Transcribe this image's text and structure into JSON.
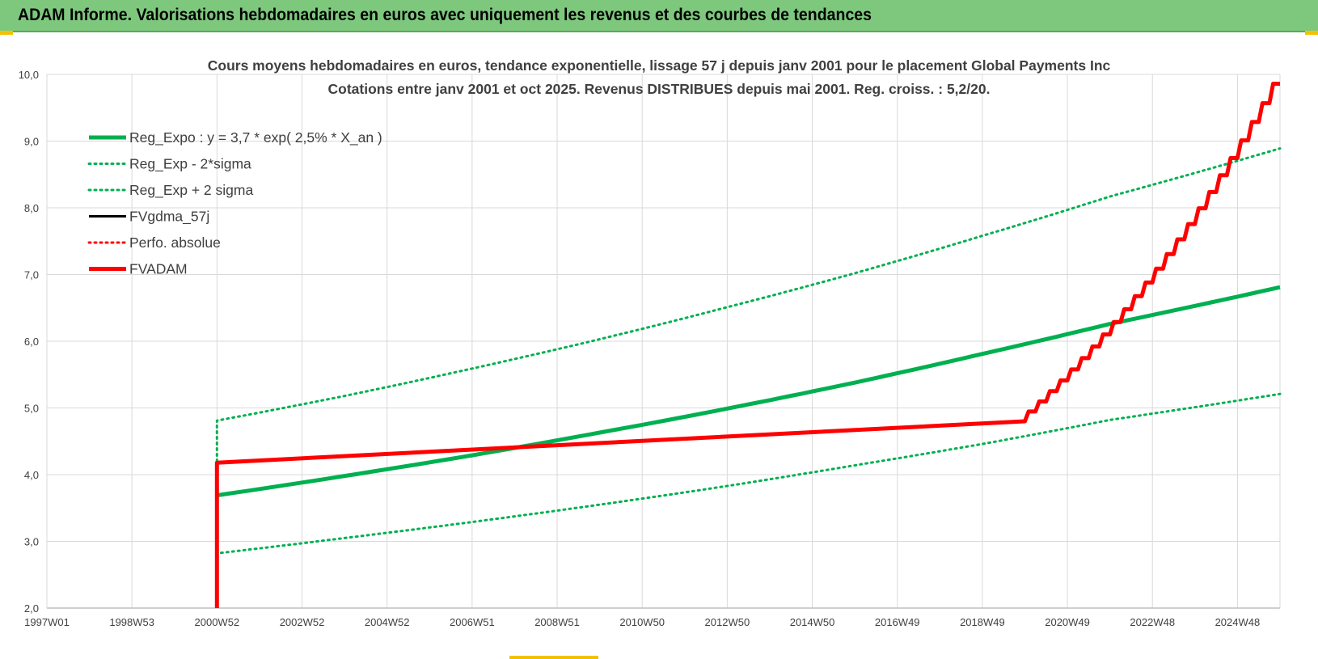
{
  "banner": {
    "title": "ADAM Informe. Valorisations hebdomadaires en euros avec uniquement les revenus et des courbes de tendances"
  },
  "colors": {
    "banner_bg": "#7ec87e",
    "green": "#00b050",
    "red": "#ff0000",
    "black": "#000000",
    "corner": "#f2c200"
  },
  "chart_data": {
    "type": "line",
    "title": "Cours moyens hebdomadaires en euros, tendance exponentielle, lissage 57 j depuis janv 2001 pour le placement Global Payments Inc",
    "subtitle": "Cotations entre janv 2001 et oct 2025. Revenus DISTRIBUES depuis mai 2001. Reg. croiss. : 5,2/20.",
    "xlabel": "",
    "ylabel": "",
    "ylim": [
      2.0,
      10.0
    ],
    "xlim": [
      1997.0,
      2026.0
    ],
    "y_ticks": [
      "2,0",
      "3,0",
      "4,0",
      "5,0",
      "6,0",
      "7,0",
      "8,0",
      "9,0",
      "10,0"
    ],
    "x_ticks": [
      {
        "label": "1997W01",
        "x": 1997.0
      },
      {
        "label": "1998W53",
        "x": 1999.0
      },
      {
        "label": "2000W52",
        "x": 2001.0
      },
      {
        "label": "2002W52",
        "x": 2003.0
      },
      {
        "label": "2004W52",
        "x": 2005.0
      },
      {
        "label": "2006W51",
        "x": 2007.0
      },
      {
        "label": "2008W51",
        "x": 2009.0
      },
      {
        "label": "2010W50",
        "x": 2011.0
      },
      {
        "label": "2012W50",
        "x": 2013.0
      },
      {
        "label": "2014W50",
        "x": 2015.0
      },
      {
        "label": "2016W49",
        "x": 2017.0
      },
      {
        "label": "2018W49",
        "x": 2019.0
      },
      {
        "label": "2020W49",
        "x": 2021.0
      },
      {
        "label": "2022W48",
        "x": 2023.0
      },
      {
        "label": "2024W48",
        "x": 2025.0
      }
    ],
    "grid": true,
    "legend_position": "top-left",
    "series": [
      {
        "name": "Reg_Expo : y = 3,7 * exp( 2,5% *  X_an )",
        "color": "#00b050",
        "style": "solid",
        "width": 5,
        "x": [
          2001.0,
          2004.0,
          2007.0,
          2010.0,
          2013.0,
          2016.0,
          2019.0,
          2022.0,
          2026.0
        ],
        "y": [
          3.69,
          3.98,
          4.29,
          4.63,
          4.99,
          5.38,
          5.81,
          6.26,
          6.81
        ]
      },
      {
        "name": "Reg_Exp - 2*sigma",
        "color": "#00b050",
        "style": "dotted",
        "width": 3,
        "x": [
          2001.0,
          2001.0,
          2004.0,
          2007.0,
          2010.0,
          2013.0,
          2016.0,
          2019.0,
          2022.0,
          2026.0
        ],
        "y": [
          4.2,
          2.82,
          3.05,
          3.29,
          3.55,
          3.83,
          4.14,
          4.46,
          4.82,
          5.21
        ]
      },
      {
        "name": "Reg_Exp + 2 sigma",
        "color": "#00b050",
        "style": "dotted",
        "width": 3,
        "x": [
          2001.0,
          2001.0,
          2004.0,
          2007.0,
          2010.0,
          2013.0,
          2016.0,
          2019.0,
          2022.0,
          2026.0
        ],
        "y": [
          4.2,
          4.81,
          5.18,
          5.59,
          6.03,
          6.51,
          7.02,
          7.58,
          8.17,
          8.89
        ]
      },
      {
        "name": "FVgdma_57j",
        "color": "#000000",
        "style": "solid",
        "width": 3,
        "x": [
          2001.0,
          2001.0,
          2020.0,
          2026.0
        ],
        "y": [
          2.0,
          4.18,
          4.8,
          9.86
        ]
      },
      {
        "name": "Perfo. absolue",
        "color": "#ff0000",
        "style": "dotted",
        "width": 3,
        "x": [],
        "y": []
      },
      {
        "name": "FVADAM",
        "color": "#ff0000",
        "style": "solid",
        "width": 5,
        "x": [
          2001.0,
          2001.0,
          2020.0,
          2026.0
        ],
        "y": [
          2.0,
          4.18,
          4.8,
          9.86
        ]
      }
    ]
  }
}
